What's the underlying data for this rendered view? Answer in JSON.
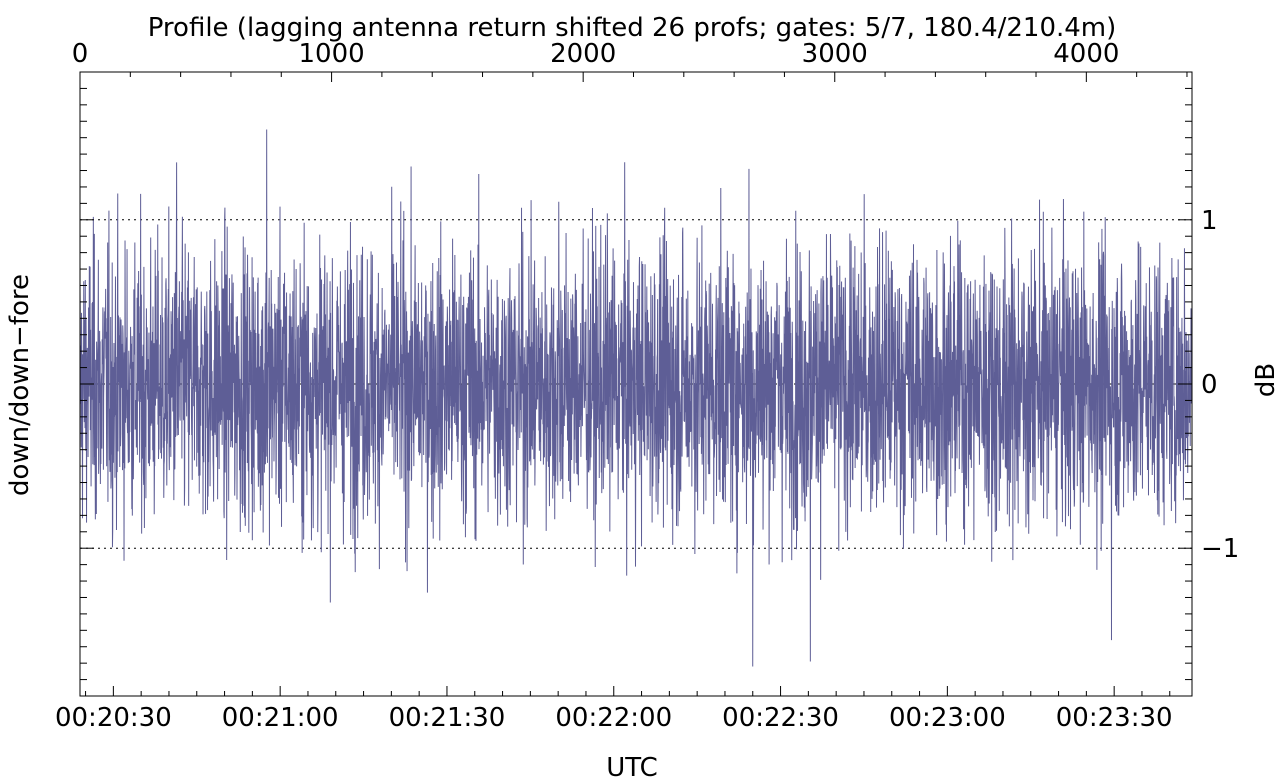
{
  "chart_data": {
    "type": "line",
    "title": "Profile (lagging antenna return shifted 26 profs; gates: 5/7, 180.4/210.4m)",
    "xlabel": "UTC",
    "ylabel_left": "down/down−fore",
    "ylabel_right": "dB",
    "top_axis": {
      "label": "Profile",
      "range": [
        0,
        4420
      ],
      "ticks": [
        "0",
        "1000",
        "2000",
        "3000",
        "4000"
      ],
      "tick_values": [
        0,
        1000,
        2000,
        3000,
        4000
      ]
    },
    "bottom_axis": {
      "range_seconds": [
        1224,
        1424
      ],
      "ticks": [
        "00:20:30",
        "00:21:00",
        "00:21:30",
        "00:22:00",
        "00:22:30",
        "00:23:00",
        "00:23:30"
      ],
      "tick_seconds": [
        1230,
        1260,
        1290,
        1320,
        1350,
        1380,
        1410
      ]
    },
    "right_axis": {
      "range": [
        -1.9,
        1.9
      ],
      "ticks": [
        "1",
        "0",
        "−1"
      ],
      "tick_values": [
        1,
        0,
        -1
      ]
    },
    "reference_lines": [
      1,
      0,
      -1
    ],
    "series": [
      {
        "color": "#5e5e96",
        "n_points": 4420,
        "std": 0.42,
        "notable_peaks": [
          {
            "profile": 742,
            "value": 1.55
          },
          {
            "profile": 2659,
            "value": 1.31
          },
          {
            "profile": 2674,
            "value": -1.72
          },
          {
            "profile": 2903,
            "value": -1.69
          },
          {
            "profile": 4100,
            "value": -1.56
          },
          {
            "profile": 384,
            "value": 1.35
          },
          {
            "profile": 1903,
            "value": 1.11
          }
        ]
      }
    ]
  }
}
